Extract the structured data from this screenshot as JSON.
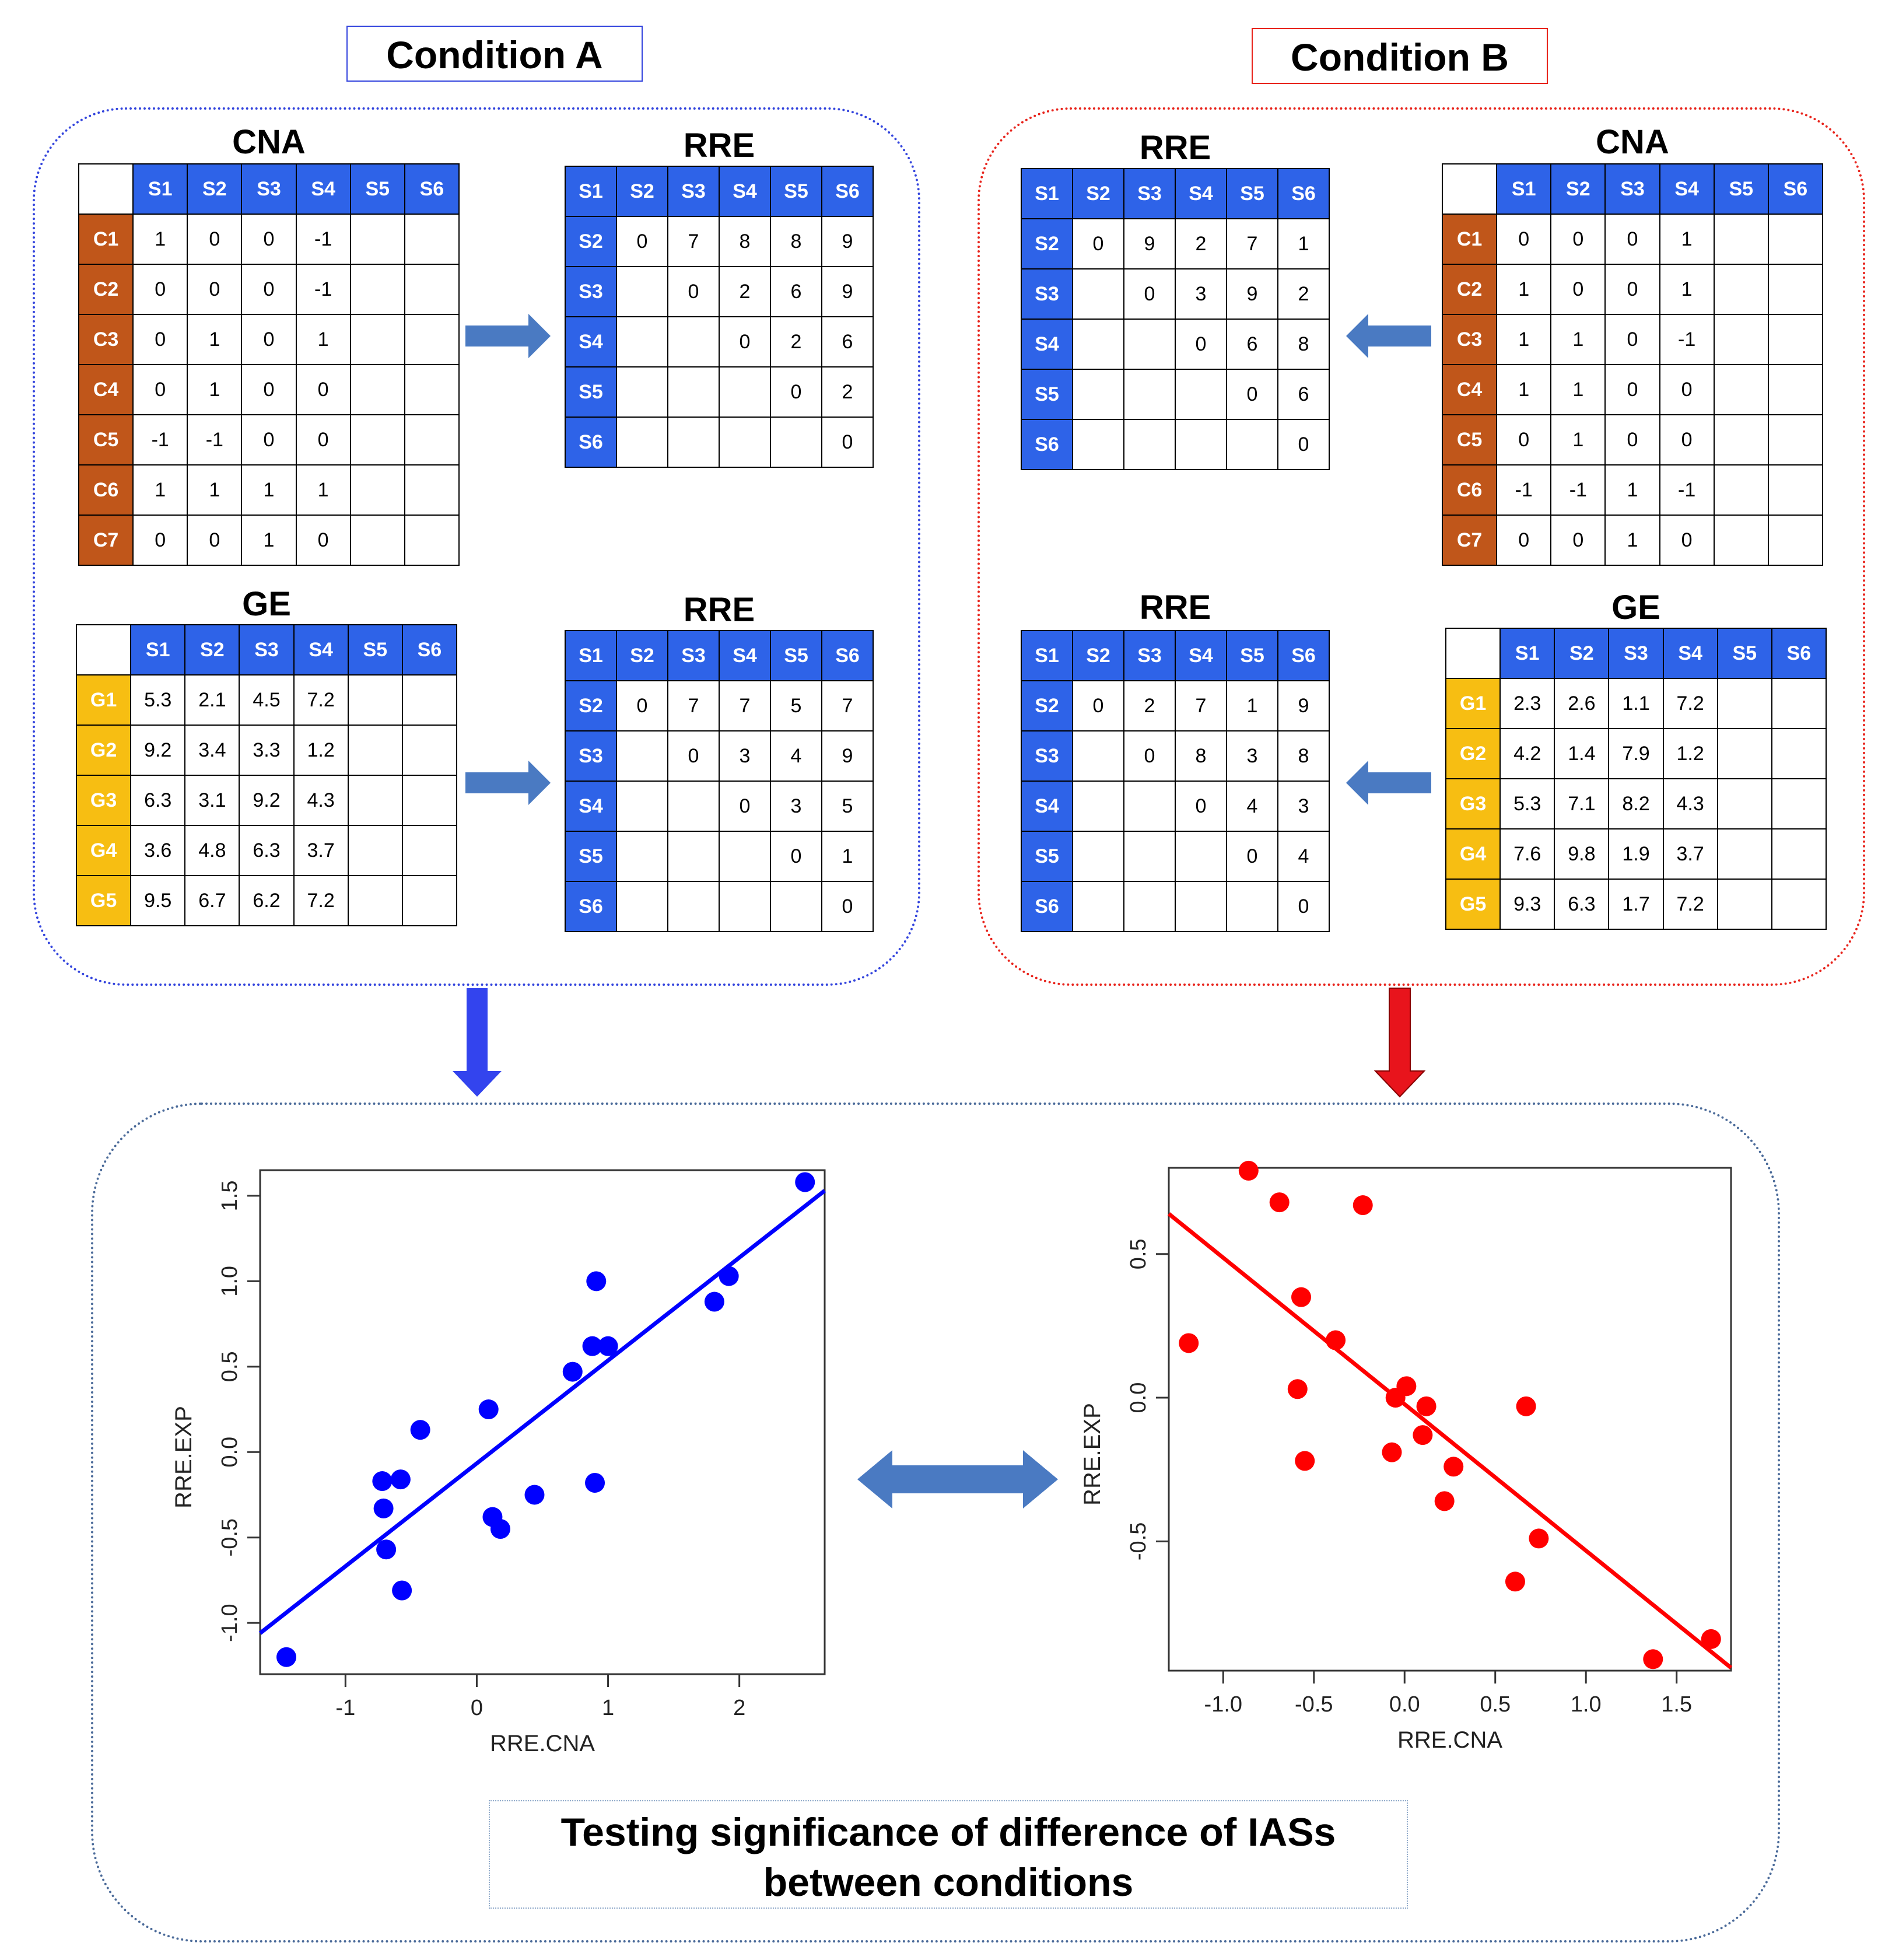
{
  "conditionA": {
    "label": "Condition A",
    "cna": {
      "title": "CNA",
      "columns": [
        "S1",
        "S2",
        "S3",
        "S4",
        "S5",
        "S6"
      ],
      "rows": [
        {
          "id": "C1",
          "values": [
            "1",
            "0",
            "0",
            "-1",
            "",
            ""
          ]
        },
        {
          "id": "C2",
          "values": [
            "0",
            "0",
            "0",
            "-1",
            "",
            ""
          ]
        },
        {
          "id": "C3",
          "values": [
            "0",
            "1",
            "0",
            "1",
            "",
            ""
          ]
        },
        {
          "id": "C4",
          "values": [
            "0",
            "1",
            "0",
            "0",
            "",
            ""
          ]
        },
        {
          "id": "C5",
          "values": [
            "-1",
            "-1",
            "0",
            "0",
            "",
            ""
          ]
        },
        {
          "id": "C6",
          "values": [
            "1",
            "1",
            "1",
            "1",
            "",
            ""
          ]
        },
        {
          "id": "C7",
          "values": [
            "0",
            "0",
            "1",
            "0",
            "",
            ""
          ]
        }
      ]
    },
    "rre_cna": {
      "title": "RRE",
      "columns": [
        "S1",
        "S2",
        "S3",
        "S4",
        "S5",
        "S6"
      ],
      "rows": [
        {
          "id": "S2",
          "values": [
            "0",
            "7",
            "8",
            "8",
            "9"
          ]
        },
        {
          "id": "S3",
          "values": [
            "",
            "0",
            "2",
            "6",
            "9"
          ]
        },
        {
          "id": "S4",
          "values": [
            "",
            "",
            "0",
            "2",
            "6"
          ]
        },
        {
          "id": "S5",
          "values": [
            "",
            "",
            "",
            "0",
            "2"
          ]
        },
        {
          "id": "S6",
          "values": [
            "",
            "",
            "",
            "",
            "0"
          ]
        }
      ]
    },
    "ge": {
      "title": "GE",
      "columns": [
        "S1",
        "S2",
        "S3",
        "S4",
        "S5",
        "S6"
      ],
      "rows": [
        {
          "id": "G1",
          "values": [
            "5.3",
            "2.1",
            "4.5",
            "7.2",
            "",
            ""
          ]
        },
        {
          "id": "G2",
          "values": [
            "9.2",
            "3.4",
            "3.3",
            "1.2",
            "",
            ""
          ]
        },
        {
          "id": "G3",
          "values": [
            "6.3",
            "3.1",
            "9.2",
            "4.3",
            "",
            ""
          ]
        },
        {
          "id": "G4",
          "values": [
            "3.6",
            "4.8",
            "6.3",
            "3.7",
            "",
            ""
          ]
        },
        {
          "id": "G5",
          "values": [
            "9.5",
            "6.7",
            "6.2",
            "7.2",
            "",
            ""
          ]
        }
      ]
    },
    "rre_ge": {
      "title": "RRE",
      "columns": [
        "S1",
        "S2",
        "S3",
        "S4",
        "S5",
        "S6"
      ],
      "rows": [
        {
          "id": "S2",
          "values": [
            "0",
            "7",
            "7",
            "5",
            "7"
          ]
        },
        {
          "id": "S3",
          "values": [
            "",
            "0",
            "3",
            "4",
            "9"
          ]
        },
        {
          "id": "S4",
          "values": [
            "",
            "",
            "0",
            "3",
            "5"
          ]
        },
        {
          "id": "S5",
          "values": [
            "",
            "",
            "",
            "0",
            "1"
          ]
        },
        {
          "id": "S6",
          "values": [
            "",
            "",
            "",
            "",
            "0"
          ]
        }
      ]
    }
  },
  "conditionB": {
    "label": "Condition B",
    "cna": {
      "title": "CNA",
      "columns": [
        "S1",
        "S2",
        "S3",
        "S4",
        "S5",
        "S6"
      ],
      "rows": [
        {
          "id": "C1",
          "values": [
            "0",
            "0",
            "0",
            "1",
            "",
            ""
          ]
        },
        {
          "id": "C2",
          "values": [
            "1",
            "0",
            "0",
            "1",
            "",
            ""
          ]
        },
        {
          "id": "C3",
          "values": [
            "1",
            "1",
            "0",
            "-1",
            "",
            ""
          ]
        },
        {
          "id": "C4",
          "values": [
            "1",
            "1",
            "0",
            "0",
            "",
            ""
          ]
        },
        {
          "id": "C5",
          "values": [
            "0",
            "1",
            "0",
            "0",
            "",
            ""
          ]
        },
        {
          "id": "C6",
          "values": [
            "-1",
            "-1",
            "1",
            "-1",
            "",
            ""
          ]
        },
        {
          "id": "C7",
          "values": [
            "0",
            "0",
            "1",
            "0",
            "",
            ""
          ]
        }
      ]
    },
    "rre_cna": {
      "title": "RRE",
      "columns": [
        "S1",
        "S2",
        "S3",
        "S4",
        "S5",
        "S6"
      ],
      "rows": [
        {
          "id": "S2",
          "values": [
            "0",
            "9",
            "2",
            "7",
            "1"
          ]
        },
        {
          "id": "S3",
          "values": [
            "",
            "0",
            "3",
            "9",
            "2"
          ]
        },
        {
          "id": "S4",
          "values": [
            "",
            "",
            "0",
            "6",
            "8"
          ]
        },
        {
          "id": "S5",
          "values": [
            "",
            "",
            "",
            "0",
            "6"
          ]
        },
        {
          "id": "S6",
          "values": [
            "",
            "",
            "",
            "",
            "0"
          ]
        }
      ]
    },
    "ge": {
      "title": "GE",
      "columns": [
        "S1",
        "S2",
        "S3",
        "S4",
        "S5",
        "S6"
      ],
      "rows": [
        {
          "id": "G1",
          "values": [
            "2.3",
            "2.6",
            "1.1",
            "7.2",
            "",
            ""
          ]
        },
        {
          "id": "G2",
          "values": [
            "4.2",
            "1.4",
            "7.9",
            "1.2",
            "",
            ""
          ]
        },
        {
          "id": "G3",
          "values": [
            "5.3",
            "7.1",
            "8.2",
            "4.3",
            "",
            ""
          ]
        },
        {
          "id": "G4",
          "values": [
            "7.6",
            "9.8",
            "1.9",
            "3.7",
            "",
            ""
          ]
        },
        {
          "id": "G5",
          "values": [
            "9.3",
            "6.3",
            "1.7",
            "7.2",
            "",
            ""
          ]
        }
      ]
    },
    "rre_ge": {
      "title": "RRE",
      "columns": [
        "S1",
        "S2",
        "S3",
        "S4",
        "S5",
        "S6"
      ],
      "rows": [
        {
          "id": "S2",
          "values": [
            "0",
            "2",
            "7",
            "1",
            "9"
          ]
        },
        {
          "id": "S3",
          "values": [
            "",
            "0",
            "8",
            "3",
            "8"
          ]
        },
        {
          "id": "S4",
          "values": [
            "",
            "",
            "0",
            "4",
            "3"
          ]
        },
        {
          "id": "S5",
          "values": [
            "",
            "",
            "",
            "0",
            "4"
          ]
        },
        {
          "id": "S6",
          "values": [
            "",
            "",
            "",
            "",
            "0"
          ]
        }
      ]
    }
  },
  "bottom_text": {
    "line1": "Testing significance of difference of IASs",
    "line2": "between conditions"
  },
  "colors": {
    "blue_header": "#2e63e8",
    "cna_row": "#c0561a",
    "ge_row": "#f7be12",
    "blue_series": "#0000ff",
    "red_series": "#ff0000",
    "arrow_steel": "#4a7ac2"
  },
  "chart_data": [
    {
      "type": "scatter",
      "name": "Condition A",
      "xlabel": "RRE.CNA",
      "ylabel": "RRE.EXP",
      "xlim": [
        -1.65,
        2.65
      ],
      "ylim": [
        -1.3,
        1.65
      ],
      "xticks": [
        -1,
        0,
        1,
        2
      ],
      "xtick_labels": [
        "-1",
        "0",
        "1",
        "2"
      ],
      "yticks": [
        -1.0,
        -0.5,
        0.0,
        0.5,
        1.0,
        1.5
      ],
      "ytick_labels": [
        "-1.0",
        "-0.5",
        "0.0",
        "0.5",
        "1.0",
        "1.5"
      ],
      "color": "#0000ff",
      "points": [
        [
          -1.45,
          -1.2
        ],
        [
          -0.72,
          -0.17
        ],
        [
          -0.71,
          -0.33
        ],
        [
          -0.69,
          -0.57
        ],
        [
          -0.58,
          -0.16
        ],
        [
          -0.57,
          -0.81
        ],
        [
          -0.43,
          0.13
        ],
        [
          0.09,
          0.25
        ],
        [
          0.12,
          -0.38
        ],
        [
          0.18,
          -0.45
        ],
        [
          0.44,
          -0.25
        ],
        [
          0.73,
          0.47
        ],
        [
          0.88,
          0.62
        ],
        [
          0.9,
          -0.18
        ],
        [
          0.91,
          1.0
        ],
        [
          1.0,
          0.62
        ],
        [
          1.81,
          0.88
        ],
        [
          1.92,
          1.03
        ],
        [
          2.5,
          1.58
        ]
      ],
      "fit": {
        "x": [
          -1.65,
          2.65
        ],
        "y": [
          -1.06,
          1.53
        ]
      }
    },
    {
      "type": "scatter",
      "name": "Condition B",
      "xlabel": "RRE.CNA",
      "ylabel": "RRE.EXP",
      "xlim": [
        -1.3,
        1.8
      ],
      "ylim": [
        -0.95,
        0.8
      ],
      "xticks": [
        -1.0,
        -0.5,
        0.0,
        0.5,
        1.0,
        1.5
      ],
      "xtick_labels": [
        "-1.0",
        "-0.5",
        "0.0",
        "0.5",
        "1.0",
        "1.5"
      ],
      "yticks": [
        -0.5,
        0.0,
        0.5
      ],
      "ytick_labels": [
        "-0.5",
        "0.0",
        "0.5"
      ],
      "color": "#ff0000",
      "points": [
        [
          -1.19,
          0.19
        ],
        [
          -0.86,
          0.79
        ],
        [
          -0.69,
          0.68
        ],
        [
          -0.59,
          0.03
        ],
        [
          -0.57,
          0.35
        ],
        [
          -0.55,
          -0.22
        ],
        [
          -0.38,
          0.2
        ],
        [
          -0.23,
          0.67
        ],
        [
          -0.07,
          -0.19
        ],
        [
          -0.05,
          0.0
        ],
        [
          0.01,
          0.04
        ],
        [
          0.1,
          -0.13
        ],
        [
          0.12,
          -0.03
        ],
        [
          0.22,
          -0.36
        ],
        [
          0.27,
          -0.24
        ],
        [
          0.61,
          -0.64
        ],
        [
          0.67,
          -0.03
        ],
        [
          0.74,
          -0.49
        ],
        [
          1.37,
          -0.91
        ],
        [
          1.69,
          -0.84
        ]
      ],
      "fit": {
        "x": [
          -1.3,
          1.8
        ],
        "y": [
          0.64,
          -0.94
        ]
      }
    }
  ]
}
